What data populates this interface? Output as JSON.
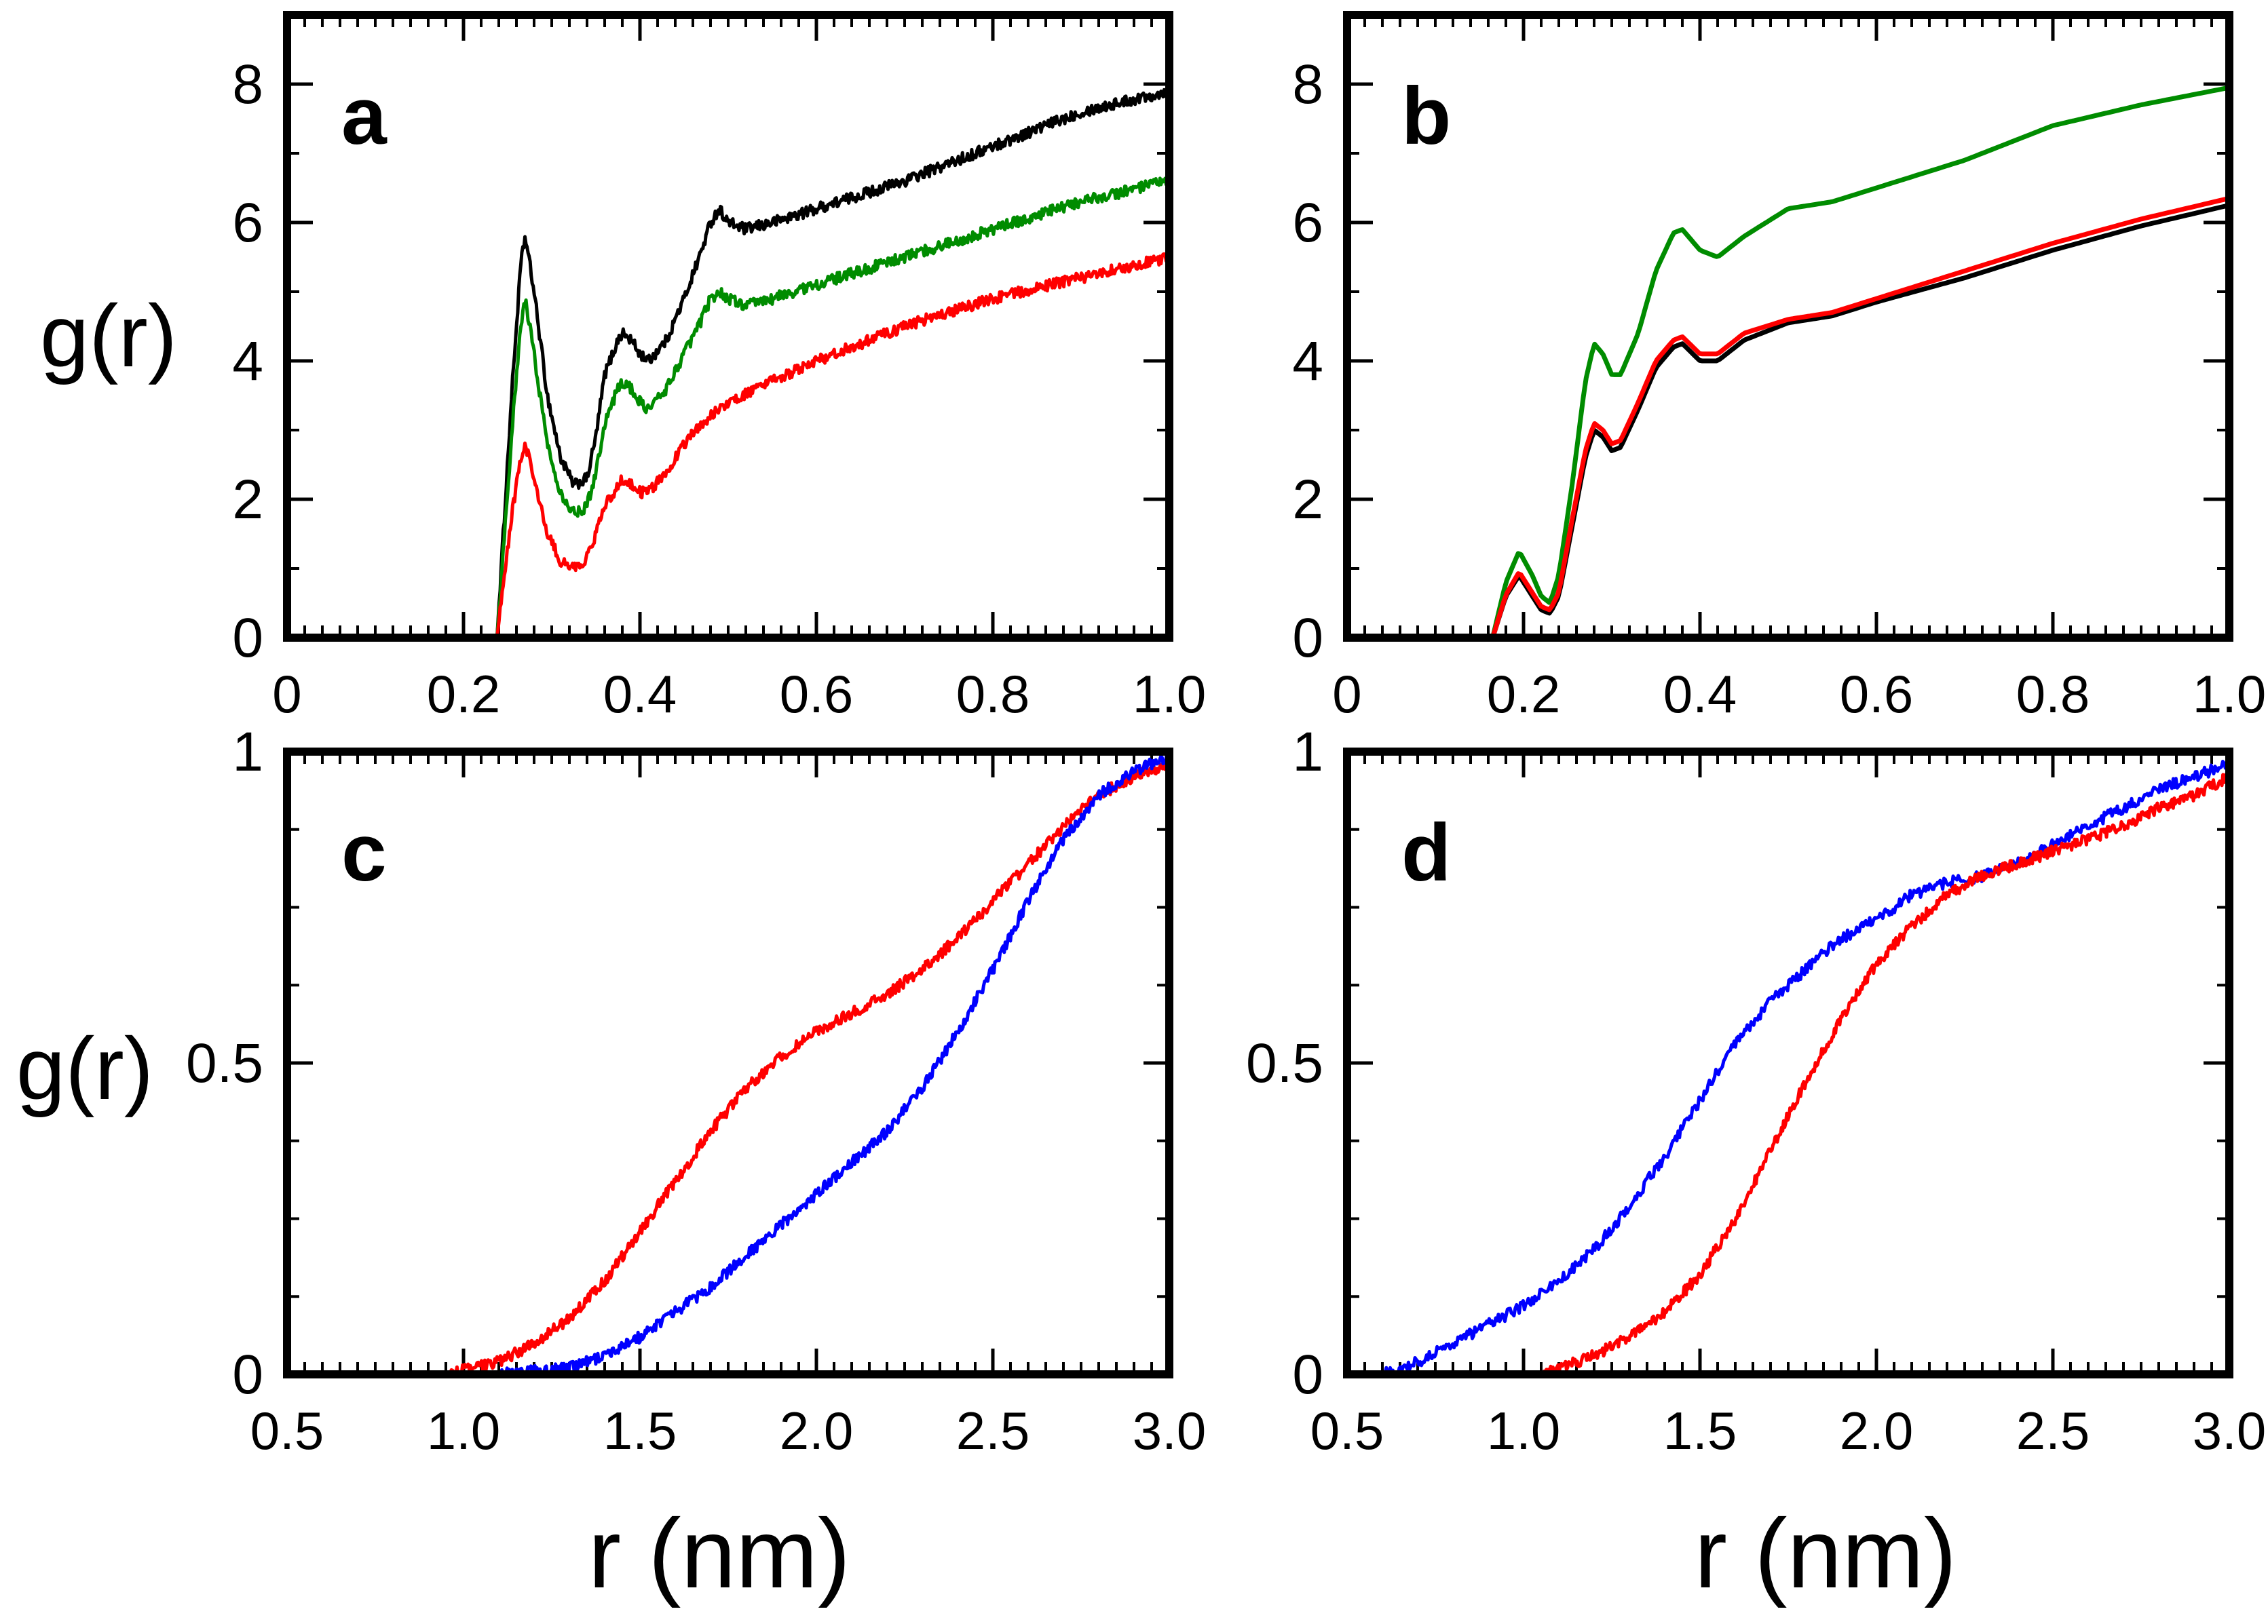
{
  "figure": {
    "ylabel_top": "g(r)",
    "ylabel_bottom": "g(r)",
    "xlabel_left": "r (nm)",
    "xlabel_right": "r (nm)"
  },
  "colors": {
    "black": "#000000",
    "red": "#ff0000",
    "green": "#008c00",
    "blue": "#0000ff"
  },
  "chart_data": [
    {
      "panel": "a",
      "type": "line",
      "title": "",
      "xlabel": "",
      "ylabel": "g(r)",
      "xlim": [
        0,
        1.0
      ],
      "ylim": [
        0,
        9
      ],
      "xticks": [
        0,
        0.2,
        0.4,
        0.6,
        0.8,
        1.0
      ],
      "xtick_labels": [
        "0",
        "0.2",
        "0.4",
        "0.6",
        "0.8",
        "1.0"
      ],
      "yticks": [
        0,
        2,
        4,
        6,
        8
      ],
      "ytick_labels": [
        "0",
        "2",
        "4",
        "6",
        "8"
      ],
      "noisy": true,
      "series": [
        {
          "name": "black",
          "color": "black",
          "x": [
            0.238,
            0.255,
            0.265,
            0.27,
            0.28,
            0.295,
            0.31,
            0.325,
            0.34,
            0.35,
            0.36,
            0.375,
            0.38,
            0.39,
            0.4,
            0.41,
            0.43,
            0.45,
            0.47,
            0.48,
            0.49,
            0.5,
            0.52,
            0.55,
            0.6,
            0.7,
            0.8,
            0.9,
            1.0
          ],
          "y": [
            0,
            3.6,
            5.4,
            5.8,
            5.0,
            3.5,
            2.6,
            2.2,
            2.3,
            2.9,
            3.8,
            4.3,
            4.4,
            4.3,
            4.1,
            4.0,
            4.3,
            4.9,
            5.6,
            6.0,
            6.2,
            6.0,
            5.9,
            6.0,
            6.2,
            6.6,
            7.1,
            7.6,
            7.9
          ]
        },
        {
          "name": "green",
          "color": "green",
          "x": [
            0.238,
            0.255,
            0.265,
            0.27,
            0.28,
            0.295,
            0.31,
            0.325,
            0.34,
            0.35,
            0.36,
            0.375,
            0.38,
            0.39,
            0.4,
            0.41,
            0.43,
            0.45,
            0.47,
            0.48,
            0.49,
            0.5,
            0.52,
            0.55,
            0.6,
            0.7,
            0.8,
            0.9,
            1.0
          ],
          "y": [
            0,
            3.0,
            4.5,
            4.9,
            4.1,
            2.8,
            2.1,
            1.8,
            1.9,
            2.4,
            3.1,
            3.6,
            3.7,
            3.6,
            3.4,
            3.3,
            3.6,
            4.1,
            4.6,
            4.9,
            5.0,
            4.9,
            4.8,
            4.9,
            5.1,
            5.5,
            5.9,
            6.3,
            6.6
          ]
        },
        {
          "name": "red",
          "color": "red",
          "x": [
            0.238,
            0.255,
            0.265,
            0.27,
            0.28,
            0.295,
            0.31,
            0.325,
            0.34,
            0.35,
            0.36,
            0.375,
            0.38,
            0.39,
            0.4,
            0.41,
            0.43,
            0.45,
            0.47,
            0.5,
            0.55,
            0.6,
            0.7,
            0.8,
            0.9,
            1.0
          ],
          "y": [
            0,
            1.8,
            2.6,
            2.8,
            2.3,
            1.5,
            1.1,
            1.0,
            1.15,
            1.5,
            1.9,
            2.2,
            2.3,
            2.2,
            2.1,
            2.1,
            2.4,
            2.8,
            3.1,
            3.4,
            3.7,
            4.0,
            4.5,
            4.9,
            5.2,
            5.5
          ]
        }
      ]
    },
    {
      "panel": "b",
      "type": "line",
      "title": "",
      "xlabel": "",
      "ylabel": "",
      "xlim": [
        0,
        1.0
      ],
      "ylim": [
        0,
        9
      ],
      "xticks": [
        0,
        0.2,
        0.4,
        0.6,
        0.8,
        1.0
      ],
      "xtick_labels": [
        "0",
        "0.2",
        "0.4",
        "0.6",
        "0.8",
        "1.0"
      ],
      "yticks": [
        0,
        2,
        4,
        6,
        8
      ],
      "ytick_labels": [
        "0",
        "2",
        "4",
        "6",
        "8"
      ],
      "noisy": false,
      "series": [
        {
          "name": "green",
          "color": "green",
          "x": [
            0.165,
            0.18,
            0.195,
            0.21,
            0.22,
            0.23,
            0.24,
            0.255,
            0.27,
            0.28,
            0.29,
            0.3,
            0.31,
            0.33,
            0.35,
            0.37,
            0.38,
            0.4,
            0.42,
            0.45,
            0.5,
            0.55,
            0.6,
            0.7,
            0.8,
            0.9,
            1.0
          ],
          "y": [
            0,
            0.8,
            1.25,
            0.9,
            0.6,
            0.5,
            0.9,
            2.2,
            3.7,
            4.25,
            4.1,
            3.8,
            3.8,
            4.4,
            5.3,
            5.85,
            5.9,
            5.6,
            5.5,
            5.8,
            6.2,
            6.3,
            6.5,
            6.9,
            7.4,
            7.7,
            7.95
          ]
        },
        {
          "name": "black",
          "color": "black",
          "x": [
            0.165,
            0.18,
            0.195,
            0.21,
            0.22,
            0.23,
            0.24,
            0.255,
            0.27,
            0.28,
            0.29,
            0.3,
            0.31,
            0.33,
            0.35,
            0.37,
            0.38,
            0.4,
            0.42,
            0.45,
            0.5,
            0.55,
            0.6,
            0.7,
            0.8,
            0.9,
            1.0
          ],
          "y": [
            0,
            0.6,
            0.9,
            0.6,
            0.4,
            0.35,
            0.6,
            1.6,
            2.6,
            3.0,
            2.9,
            2.7,
            2.75,
            3.3,
            3.9,
            4.2,
            4.25,
            4.0,
            4.0,
            4.3,
            4.55,
            4.65,
            4.85,
            5.2,
            5.6,
            5.95,
            6.25
          ]
        },
        {
          "name": "red",
          "color": "red",
          "x": [
            0.165,
            0.18,
            0.195,
            0.21,
            0.22,
            0.23,
            0.24,
            0.255,
            0.27,
            0.28,
            0.29,
            0.3,
            0.31,
            0.33,
            0.35,
            0.37,
            0.38,
            0.4,
            0.42,
            0.45,
            0.5,
            0.55,
            0.6,
            0.7,
            0.8,
            0.9,
            1.0
          ],
          "y": [
            0,
            0.62,
            0.95,
            0.65,
            0.45,
            0.4,
            0.65,
            1.7,
            2.7,
            3.1,
            3.0,
            2.8,
            2.85,
            3.4,
            4.0,
            4.3,
            4.35,
            4.1,
            4.1,
            4.4,
            4.6,
            4.7,
            4.9,
            5.3,
            5.7,
            6.05,
            6.35
          ]
        }
      ]
    },
    {
      "panel": "c",
      "type": "line",
      "title": "",
      "xlabel": "r (nm)",
      "ylabel": "g(r)",
      "xlim": [
        0.5,
        3.0
      ],
      "ylim": [
        0,
        1.0
      ],
      "xticks": [
        0.5,
        1.0,
        1.5,
        2.0,
        2.5,
        3.0
      ],
      "xtick_labels": [
        "0.5",
        "1.0",
        "1.5",
        "2.0",
        "2.5",
        "3.0"
      ],
      "yticks": [
        0,
        0.5,
        1.0
      ],
      "ytick_labels": [
        "0",
        "0.5",
        "1"
      ],
      "noisy": true,
      "series": [
        {
          "name": "red",
          "color": "red",
          "x": [
            0.95,
            1.1,
            1.2,
            1.3,
            1.4,
            1.5,
            1.6,
            1.7,
            1.8,
            1.9,
            2.0,
            2.1,
            2.2,
            2.3,
            2.4,
            2.5,
            2.6,
            2.7,
            2.8,
            2.9,
            3.0
          ],
          "y": [
            0,
            0.02,
            0.05,
            0.09,
            0.15,
            0.23,
            0.31,
            0.39,
            0.46,
            0.51,
            0.55,
            0.58,
            0.61,
            0.65,
            0.7,
            0.76,
            0.82,
            0.88,
            0.93,
            0.96,
            0.98
          ]
        },
        {
          "name": "blue",
          "color": "blue",
          "x": [
            1.1,
            1.3,
            1.4,
            1.5,
            1.6,
            1.7,
            1.8,
            1.9,
            2.0,
            2.1,
            2.2,
            2.3,
            2.4,
            2.5,
            2.6,
            2.7,
            2.8,
            2.9,
            3.0
          ],
          "y": [
            0,
            0.01,
            0.03,
            0.06,
            0.1,
            0.14,
            0.19,
            0.24,
            0.29,
            0.34,
            0.39,
            0.46,
            0.55,
            0.65,
            0.76,
            0.86,
            0.93,
            0.97,
            0.99
          ]
        }
      ]
    },
    {
      "panel": "d",
      "type": "line",
      "title": "",
      "xlabel": "r (nm)",
      "ylabel": "",
      "xlim": [
        0.5,
        3.0
      ],
      "ylim": [
        0,
        1.0
      ],
      "xticks": [
        0.5,
        1.0,
        1.5,
        2.0,
        2.5,
        3.0
      ],
      "xtick_labels": [
        "0.5",
        "1.0",
        "1.5",
        "2.0",
        "2.5",
        "3.0"
      ],
      "yticks": [
        0,
        0.5,
        1.0
      ],
      "ytick_labels": [
        "0",
        "0.5",
        "1"
      ],
      "noisy": true,
      "series": [
        {
          "name": "blue",
          "color": "blue",
          "x": [
            0.6,
            0.7,
            0.8,
            0.9,
            1.0,
            1.1,
            1.2,
            1.3,
            1.4,
            1.5,
            1.6,
            1.7,
            1.8,
            1.9,
            2.0,
            2.1,
            2.2,
            2.3,
            2.4,
            2.5,
            2.6,
            2.7,
            2.8,
            2.9,
            3.0
          ],
          "y": [
            0,
            0.02,
            0.05,
            0.08,
            0.11,
            0.15,
            0.2,
            0.27,
            0.35,
            0.44,
            0.53,
            0.6,
            0.65,
            0.7,
            0.73,
            0.77,
            0.79,
            0.8,
            0.82,
            0.85,
            0.88,
            0.91,
            0.94,
            0.96,
            0.98
          ]
        },
        {
          "name": "red",
          "color": "red",
          "x": [
            1.05,
            1.2,
            1.3,
            1.4,
            1.5,
            1.6,
            1.7,
            1.8,
            1.9,
            2.0,
            2.1,
            2.2,
            2.3,
            2.4,
            2.5,
            2.6,
            2.7,
            2.8,
            2.9,
            3.0
          ],
          "y": [
            0,
            0.03,
            0.06,
            0.1,
            0.16,
            0.25,
            0.36,
            0.47,
            0.57,
            0.66,
            0.72,
            0.77,
            0.8,
            0.82,
            0.84,
            0.86,
            0.88,
            0.91,
            0.93,
            0.96
          ]
        }
      ]
    }
  ]
}
